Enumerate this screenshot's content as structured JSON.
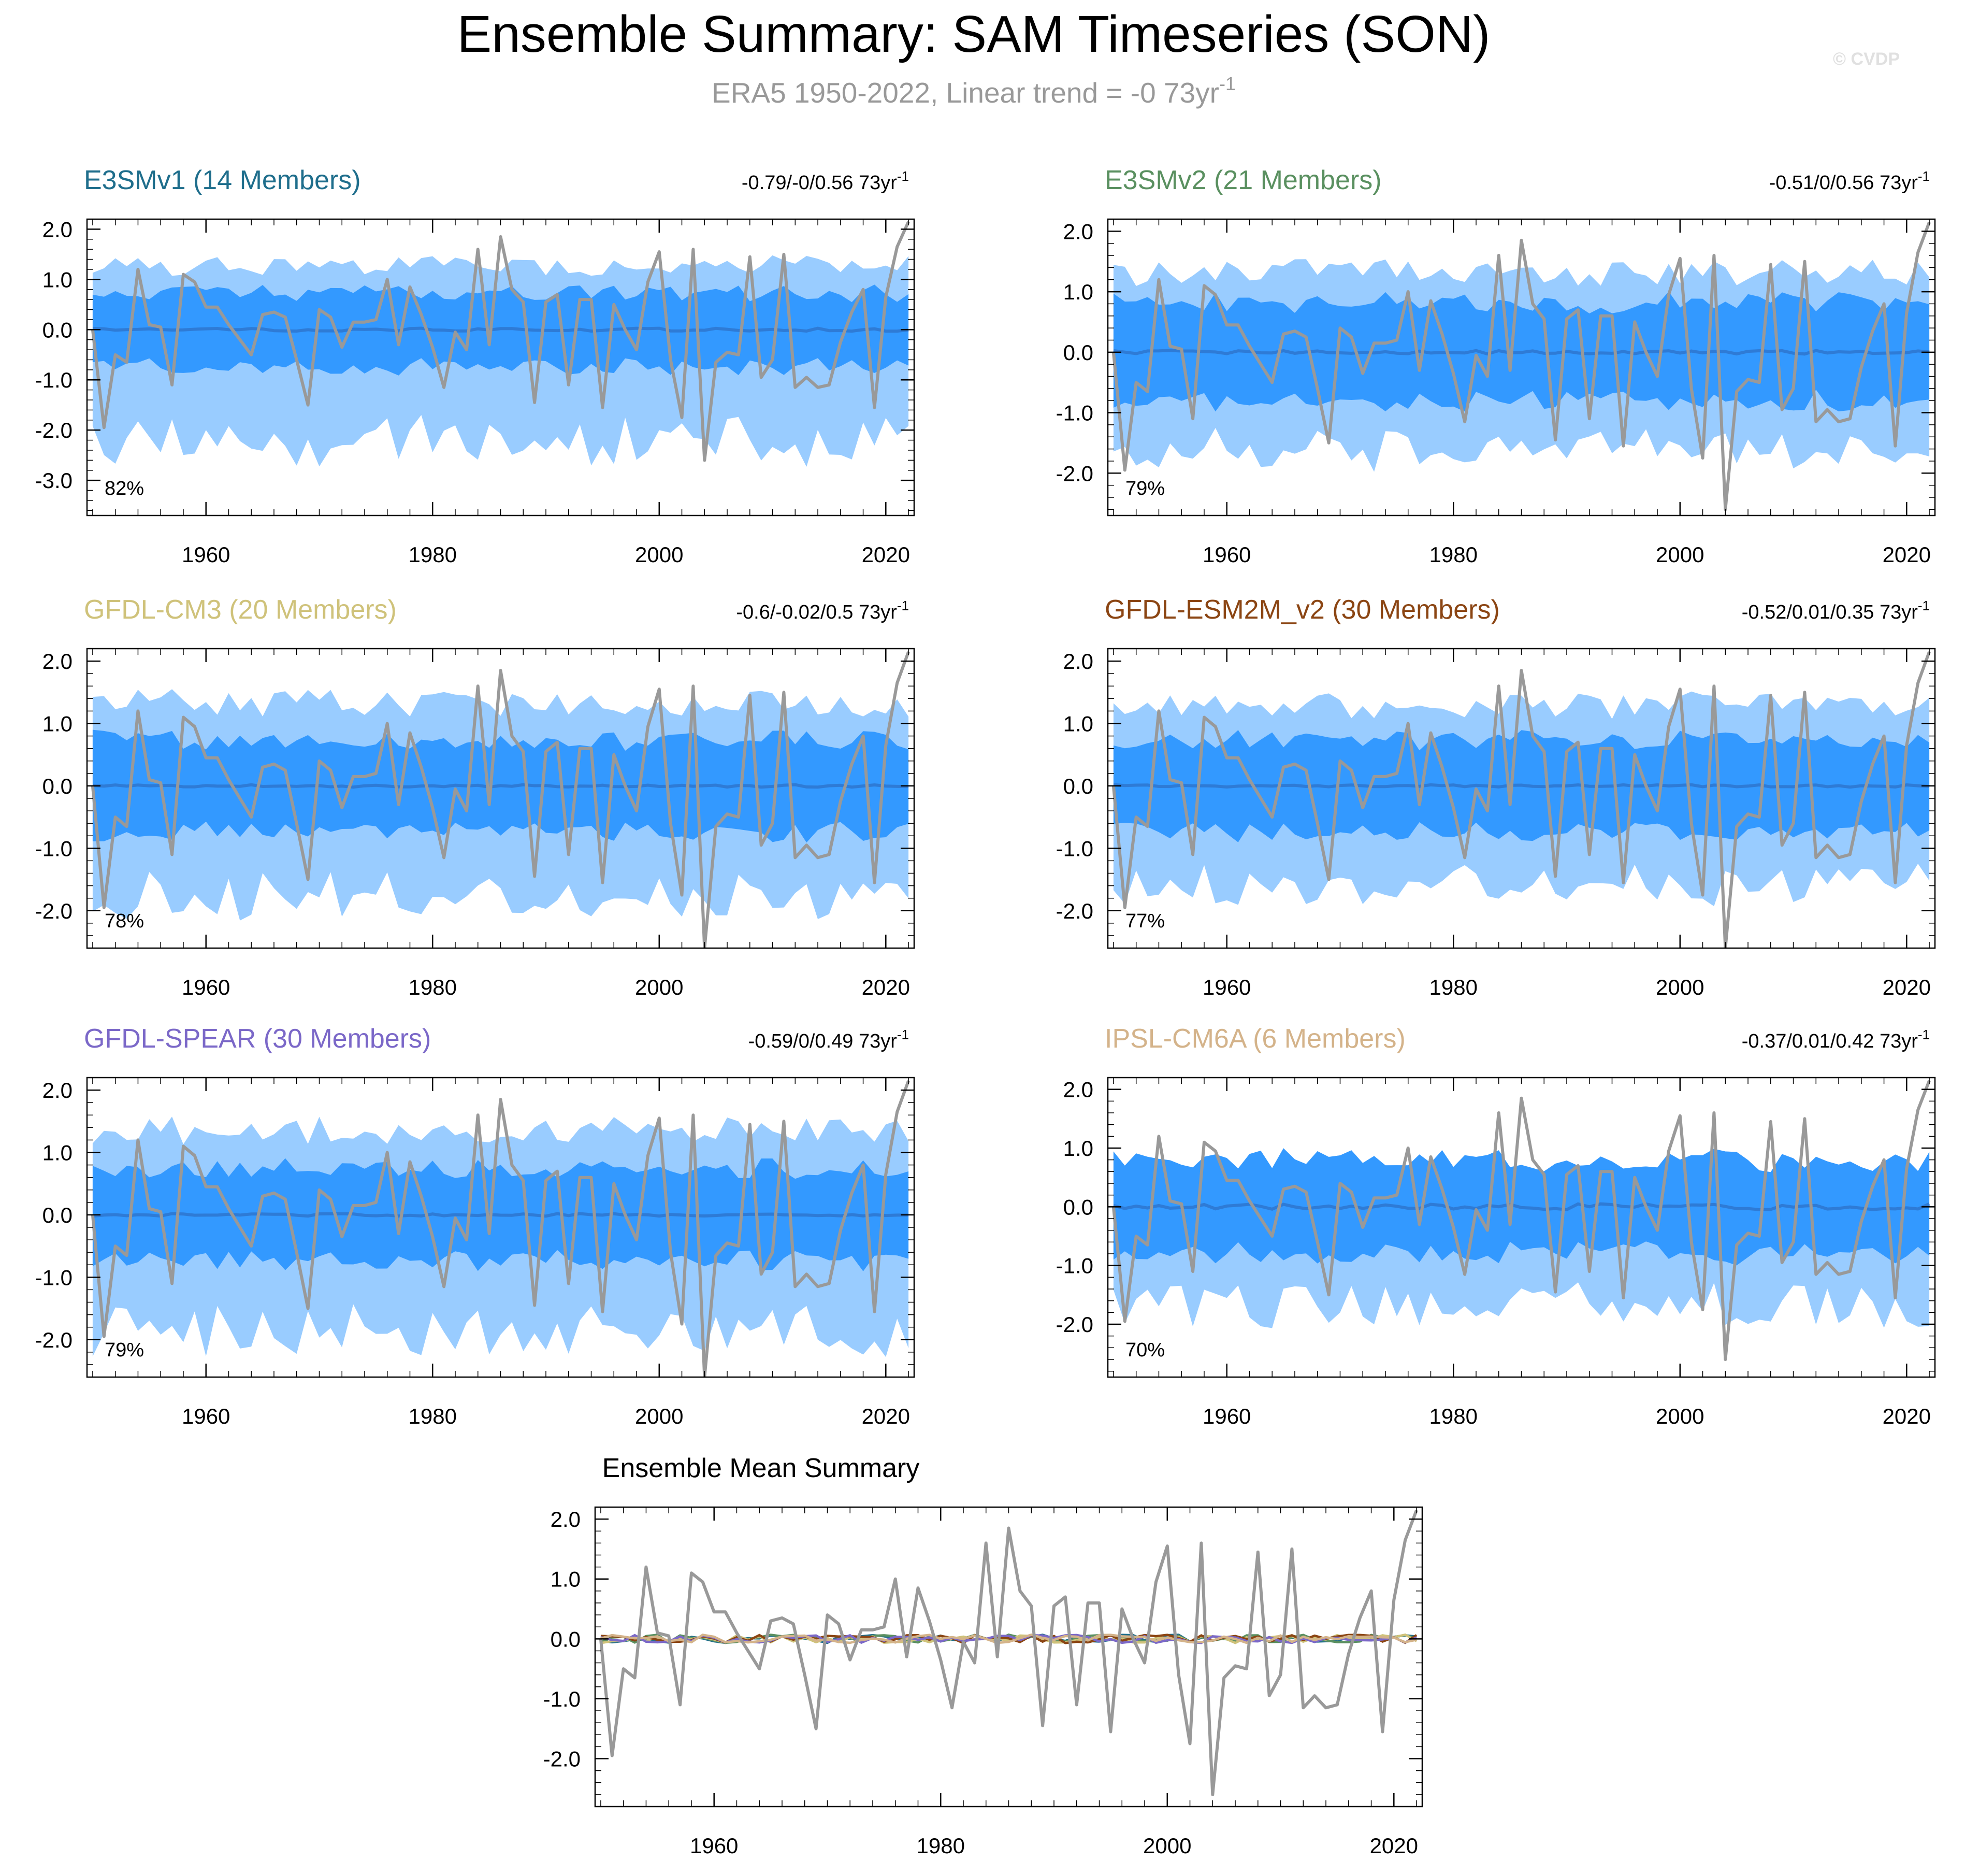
{
  "figure": {
    "title": "Ensemble Summary: SAM Timeseries (SON)",
    "subtitle_main": "ERA5 1950-2022, Linear trend = -0 73yr",
    "subtitle_sup": "-1",
    "watermark": "© CVDP",
    "trend_units": "73yr",
    "trend_sup": "-1"
  },
  "colors": {
    "outer_band": "#99ccff",
    "inner_band": "#3399ff",
    "ens_mean": "#2e7bd6",
    "obs": "#999999",
    "axis": "#000000",
    "subtitle": "#999999",
    "watermark": "#e0e0e0"
  },
  "chart_data": [
    {
      "type": "area",
      "title": "E3SMv1 (14 Members)",
      "title_color": "#1f6e8c",
      "trend_text": "-0.79/-0/0.56 73yr",
      "percent_label": "82%",
      "ylim": [
        -3.7,
        2.2
      ],
      "yticks": [
        2.0,
        1.0,
        0.0,
        -1.0,
        -2.0,
        -3.0
      ],
      "ytick_labels": [
        "2.0",
        "1.0",
        "0.0",
        "-1.0",
        "-2.0",
        "-3.0"
      ],
      "xlim": [
        1949.5,
        2022.5
      ],
      "xticks": [
        1960,
        1980,
        2000,
        2020
      ],
      "xtick_labels": [
        "1960",
        "1980",
        "2000",
        "2020"
      ],
      "seed": 11,
      "inner_half": 0.72,
      "outer_lo": -2.2,
      "outer_hi": 1.25,
      "mean_amp": 0.03
    },
    {
      "type": "area",
      "title": "E3SMv2 (21 Members)",
      "title_color": "#5a9060",
      "trend_text": "-0.51/0/0.56 73yr",
      "percent_label": "79%",
      "ylim": [
        -2.7,
        2.2
      ],
      "yticks": [
        2.0,
        1.0,
        0.0,
        -1.0,
        -2.0
      ],
      "ytick_labels": [
        "2.0",
        "1.0",
        "0.0",
        "-1.0",
        "-2.0"
      ],
      "xlim": [
        1949.5,
        2022.5
      ],
      "xticks": [
        1960,
        1980,
        2000,
        2020
      ],
      "xtick_labels": [
        "1960",
        "1980",
        "2000",
        "2020"
      ],
      "seed": 23,
      "inner_half": 0.8,
      "outer_lo": -1.6,
      "outer_hi": 1.3,
      "mean_amp": 0.03
    },
    {
      "type": "area",
      "title": "GFDL-CM3 (20 Members)",
      "title_color": "#cfc27a",
      "trend_text": "-0.6/-0.02/0.5 73yr",
      "percent_label": "78%",
      "ylim": [
        -2.6,
        2.2
      ],
      "yticks": [
        2.0,
        1.0,
        0.0,
        -1.0,
        -2.0
      ],
      "ytick_labels": [
        "2.0",
        "1.0",
        "0.0",
        "-1.0",
        "-2.0"
      ],
      "xlim": [
        1949.5,
        2022.5
      ],
      "xticks": [
        1960,
        1980,
        2000,
        2020
      ],
      "xtick_labels": [
        "1960",
        "1980",
        "2000",
        "2020"
      ],
      "seed": 37,
      "inner_half": 0.72,
      "outer_lo": -1.75,
      "outer_hi": 1.3,
      "mean_amp": 0.02
    },
    {
      "type": "area",
      "title": "GFDL-ESM2M_v2 (30 Members)",
      "title_color": "#8b4513",
      "trend_text": "-0.52/0.01/0.35 73yr",
      "percent_label": "77%",
      "ylim": [
        -2.6,
        2.2
      ],
      "yticks": [
        2.0,
        1.0,
        0.0,
        -1.0,
        -2.0
      ],
      "ytick_labels": [
        "2.0",
        "1.0",
        "0.0",
        "-1.0",
        "-2.0"
      ],
      "xlim": [
        1949.5,
        2022.5
      ],
      "xticks": [
        1960,
        1980,
        2000,
        2020
      ],
      "xtick_labels": [
        "1960",
        "1980",
        "2000",
        "2020"
      ],
      "seed": 41,
      "inner_half": 0.72,
      "outer_lo": -1.6,
      "outer_hi": 1.25,
      "mean_amp": 0.02
    },
    {
      "type": "area",
      "title": "GFDL-SPEAR (30 Members)",
      "title_color": "#7b68c8",
      "trend_text": "-0.59/0/0.49 73yr",
      "percent_label": "79%",
      "ylim": [
        -2.6,
        2.2
      ],
      "yticks": [
        2.0,
        1.0,
        0.0,
        -1.0,
        -2.0
      ],
      "ytick_labels": [
        "2.0",
        "1.0",
        "0.0",
        "-1.0",
        "-2.0"
      ],
      "xlim": [
        1949.5,
        2022.5
      ],
      "xticks": [
        1960,
        1980,
        2000,
        2020
      ],
      "xtick_labels": [
        "1960",
        "1980",
        "2000",
        "2020"
      ],
      "seed": 53,
      "inner_half": 0.72,
      "outer_lo": -1.85,
      "outer_hi": 1.3,
      "mean_amp": 0.02
    },
    {
      "type": "area",
      "title": "IPSL-CM6A (6 Members)",
      "title_color": "#d4b38a",
      "trend_text": "-0.37/0.01/0.42 73yr",
      "percent_label": "70%",
      "ylim": [
        -2.9,
        2.2
      ],
      "yticks": [
        2.0,
        1.0,
        0.0,
        -1.0,
        -2.0
      ],
      "ytick_labels": [
        "2.0",
        "1.0",
        "0.0",
        "-1.0",
        "-2.0"
      ],
      "xlim": [
        1949.5,
        2022.5
      ],
      "xticks": [
        1960,
        1980,
        2000,
        2020
      ],
      "xtick_labels": [
        "1960",
        "1980",
        "2000",
        "2020"
      ],
      "seed": 67,
      "inner_half": 0.78,
      "outer_lo": -1.7,
      "outer_hi": 0.0,
      "mean_amp": 0.05
    },
    {
      "type": "line",
      "title": "Ensemble Mean Summary",
      "title_color": "#000000",
      "ylim": [
        -2.8,
        2.2
      ],
      "yticks": [
        2.0,
        1.0,
        0.0,
        -1.0,
        -2.0
      ],
      "ytick_labels": [
        "2.0",
        "1.0",
        "0.0",
        "-1.0",
        "-2.0"
      ],
      "xlim": [
        1949.5,
        2022.5
      ],
      "xticks": [
        1960,
        1980,
        2000,
        2020
      ],
      "xtick_labels": [
        "1960",
        "1980",
        "2000",
        "2020"
      ],
      "series_colors": [
        "#1f6e8c",
        "#5a9060",
        "#cfc27a",
        "#8b4513",
        "#7b68c8",
        "#d4b38a"
      ]
    }
  ],
  "observations": {
    "name": "ERA5",
    "years_start": 1950,
    "values": [
      0.0,
      -1.95,
      -0.5,
      -0.65,
      1.2,
      0.1,
      0.05,
      -1.1,
      1.1,
      0.95,
      0.45,
      0.45,
      0.1,
      -0.2,
      -0.5,
      0.3,
      0.35,
      0.25,
      -0.6,
      -1.5,
      0.4,
      0.25,
      -0.35,
      0.15,
      0.15,
      0.2,
      1.0,
      -0.3,
      0.85,
      0.3,
      -0.35,
      -1.15,
      -0.05,
      -0.4,
      1.6,
      -0.3,
      1.85,
      0.8,
      0.55,
      -1.45,
      0.55,
      0.7,
      -1.1,
      0.6,
      0.6,
      -1.55,
      0.5,
      0.0,
      -0.4,
      0.95,
      1.55,
      -0.6,
      -1.75,
      1.6,
      -2.6,
      -0.65,
      -0.45,
      -0.5,
      1.45,
      -0.95,
      -0.6,
      1.5,
      -1.15,
      -0.95,
      -1.15,
      -1.1,
      -0.25,
      0.35,
      0.8,
      -1.55,
      0.65,
      1.65,
      2.15
    ]
  }
}
